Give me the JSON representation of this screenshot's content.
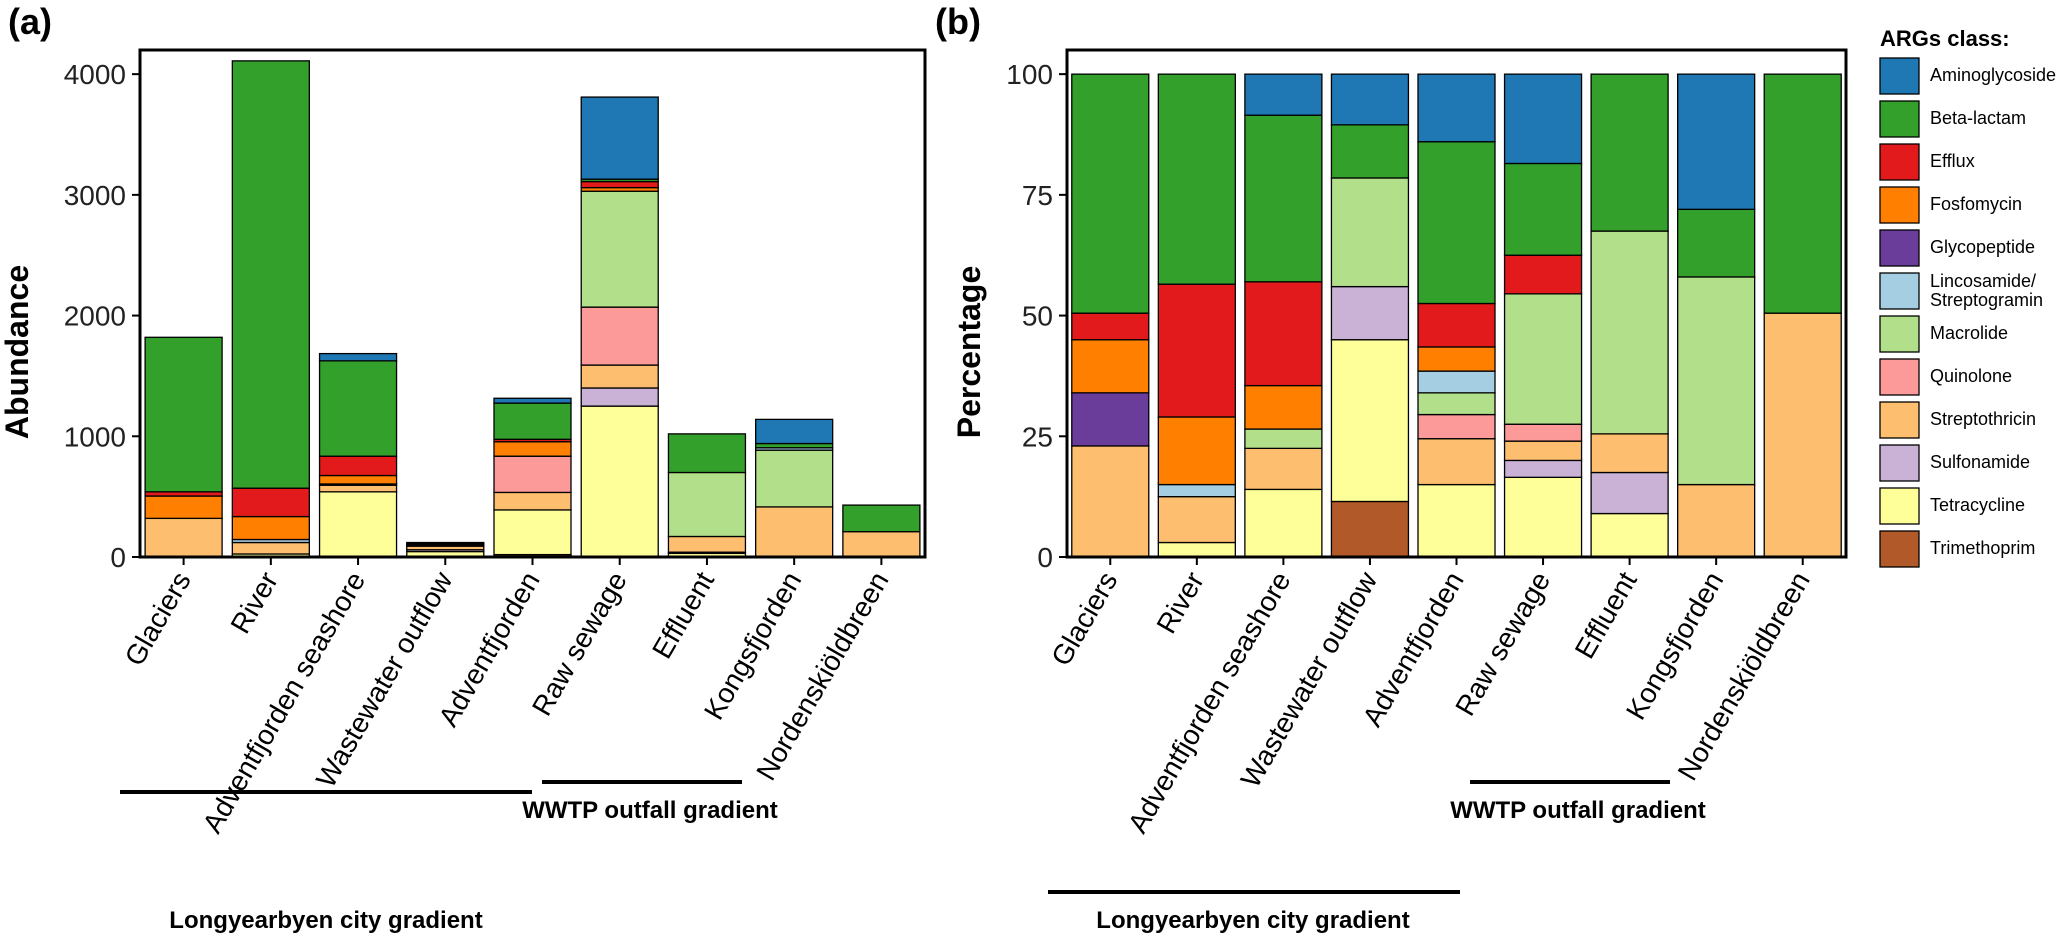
{
  "categories": [
    "Glaciers",
    "River",
    "Adventfjorden seashore",
    "Wastewater outflow",
    "Adventfjorden",
    "Raw sewage",
    "Effluent",
    "Kongsfjorden",
    "Nordenskiöldbreen"
  ],
  "gradients": {
    "city": "Longyearbyen city gradient",
    "wwtp": "WWTP outfall gradient"
  },
  "legend": {
    "title": "ARGs class:",
    "items": [
      {
        "name": "Aminoglycoside",
        "color": "#1F78B4"
      },
      {
        "name": "Beta-lactam",
        "color": "#33A02C"
      },
      {
        "name": "Efflux",
        "color": "#E31A1C"
      },
      {
        "name": "Fosfomycin",
        "color": "#FF7F00"
      },
      {
        "name": "Glycopeptide",
        "color": "#6A3D9A"
      },
      {
        "name": "Lincosamide/\nStreptogramin",
        "color": "#A6CEE3"
      },
      {
        "name": "Macrolide",
        "color": "#B2DF8A"
      },
      {
        "name": "Quinolone",
        "color": "#FB9A99"
      },
      {
        "name": "Streptothricin",
        "color": "#FDBF6F"
      },
      {
        "name": "Sulfonamide",
        "color": "#CAB2D6"
      },
      {
        "name": "Tetracycline",
        "color": "#FFFF99"
      },
      {
        "name": "Trimethoprim",
        "color": "#B15928"
      }
    ]
  },
  "chart_data": [
    {
      "panel": "(a)",
      "type": "bar",
      "stacked": true,
      "ylabel": "Abundance",
      "ylim": [
        0,
        4200
      ],
      "yticks": [
        0,
        1000,
        2000,
        3000,
        4000
      ],
      "categories": [
        "Glaciers",
        "River",
        "Adventfjorden seashore",
        "Wastewater outflow",
        "Adventfjorden",
        "Raw sewage",
        "Effluent",
        "Kongsfjorden",
        "Nordenskiöldbreen"
      ],
      "series": [
        {
          "name": "Trimethoprim",
          "values": [
            0,
            0,
            0,
            0,
            20,
            0,
            0,
            0,
            0
          ]
        },
        {
          "name": "Tetracycline",
          "values": [
            0,
            25,
            540,
            45,
            370,
            1250,
            30,
            0,
            0
          ]
        },
        {
          "name": "Sulfonamide",
          "values": [
            0,
            0,
            0,
            15,
            0,
            150,
            10,
            0,
            0
          ]
        },
        {
          "name": "Streptothricin",
          "values": [
            320,
            95,
            55,
            30,
            145,
            190,
            130,
            415,
            210
          ]
        },
        {
          "name": "Quinolone",
          "values": [
            0,
            0,
            10,
            10,
            300,
            480,
            0,
            0,
            0
          ]
        },
        {
          "name": "Macrolide",
          "values": [
            0,
            0,
            0,
            10,
            0,
            960,
            530,
            470,
            0
          ]
        },
        {
          "name": "Lincosamide/Streptogramin",
          "values": [
            0,
            25,
            0,
            0,
            0,
            0,
            0,
            20,
            0
          ]
        },
        {
          "name": "Glycopeptide",
          "values": [
            0,
            0,
            0,
            0,
            0,
            0,
            0,
            0,
            0
          ]
        },
        {
          "name": "Fosfomycin",
          "values": [
            185,
            190,
            70,
            0,
            120,
            30,
            0,
            0,
            0
          ]
        },
        {
          "name": "Efflux",
          "values": [
            35,
            235,
            160,
            0,
            20,
            50,
            0,
            0,
            0
          ]
        },
        {
          "name": "Beta-lactam",
          "values": [
            1280,
            3540,
            790,
            10,
            300,
            20,
            320,
            35,
            220
          ]
        },
        {
          "name": "Aminoglycoside",
          "values": [
            0,
            0,
            60,
            0,
            40,
            680,
            0,
            200,
            0
          ]
        }
      ]
    },
    {
      "panel": "(b)",
      "type": "bar",
      "stacked": true,
      "ylabel": "Percentage",
      "ylim": [
        0,
        105
      ],
      "yticks": [
        0,
        25,
        50,
        75,
        100
      ],
      "categories": [
        "Glaciers",
        "River",
        "Adventfjorden seashore",
        "Wastewater outflow",
        "Adventfjorden",
        "Raw sewage",
        "Effluent",
        "Kongsfjorden",
        "Nordenskiöldbreen"
      ],
      "series": [
        {
          "name": "Trimethoprim",
          "values": [
            0,
            0,
            0,
            11.5,
            0,
            0,
            0,
            0,
            0
          ]
        },
        {
          "name": "Tetracycline",
          "values": [
            0,
            3,
            14,
            33.5,
            15,
            16.5,
            9,
            0,
            0
          ]
        },
        {
          "name": "Sulfonamide",
          "values": [
            0,
            0,
            0,
            11,
            0,
            3.5,
            8.5,
            0,
            0
          ]
        },
        {
          "name": "Streptothricin",
          "values": [
            23,
            9.5,
            8.5,
            0,
            9.5,
            4,
            8,
            15,
            50.5
          ]
        },
        {
          "name": "Quinolone",
          "values": [
            0,
            0,
            0,
            0,
            5,
            3.5,
            0,
            0,
            0
          ]
        },
        {
          "name": "Macrolide",
          "values": [
            0,
            0,
            4,
            22.5,
            4.5,
            27,
            42,
            43,
            0
          ]
        },
        {
          "name": "Lincosamide/Streptogramin",
          "values": [
            0,
            2.5,
            0,
            0,
            4.5,
            0,
            0,
            0,
            0
          ]
        },
        {
          "name": "Glycopeptide",
          "values": [
            11,
            0,
            0,
            0,
            0,
            0,
            0,
            0,
            0
          ]
        },
        {
          "name": "Fosfomycin",
          "values": [
            11,
            14,
            9,
            0,
            5,
            0,
            0,
            0,
            0
          ]
        },
        {
          "name": "Efflux",
          "values": [
            5.5,
            27.5,
            21.5,
            0,
            9,
            8,
            0,
            0,
            0
          ]
        },
        {
          "name": "Beta-lactam",
          "values": [
            49.5,
            43.5,
            34.5,
            11,
            33.5,
            19,
            32.5,
            14,
            49.5
          ]
        },
        {
          "name": "Aminoglycoside",
          "values": [
            0,
            0,
            8.5,
            10.5,
            14,
            18.5,
            0,
            28,
            0
          ]
        }
      ]
    }
  ]
}
